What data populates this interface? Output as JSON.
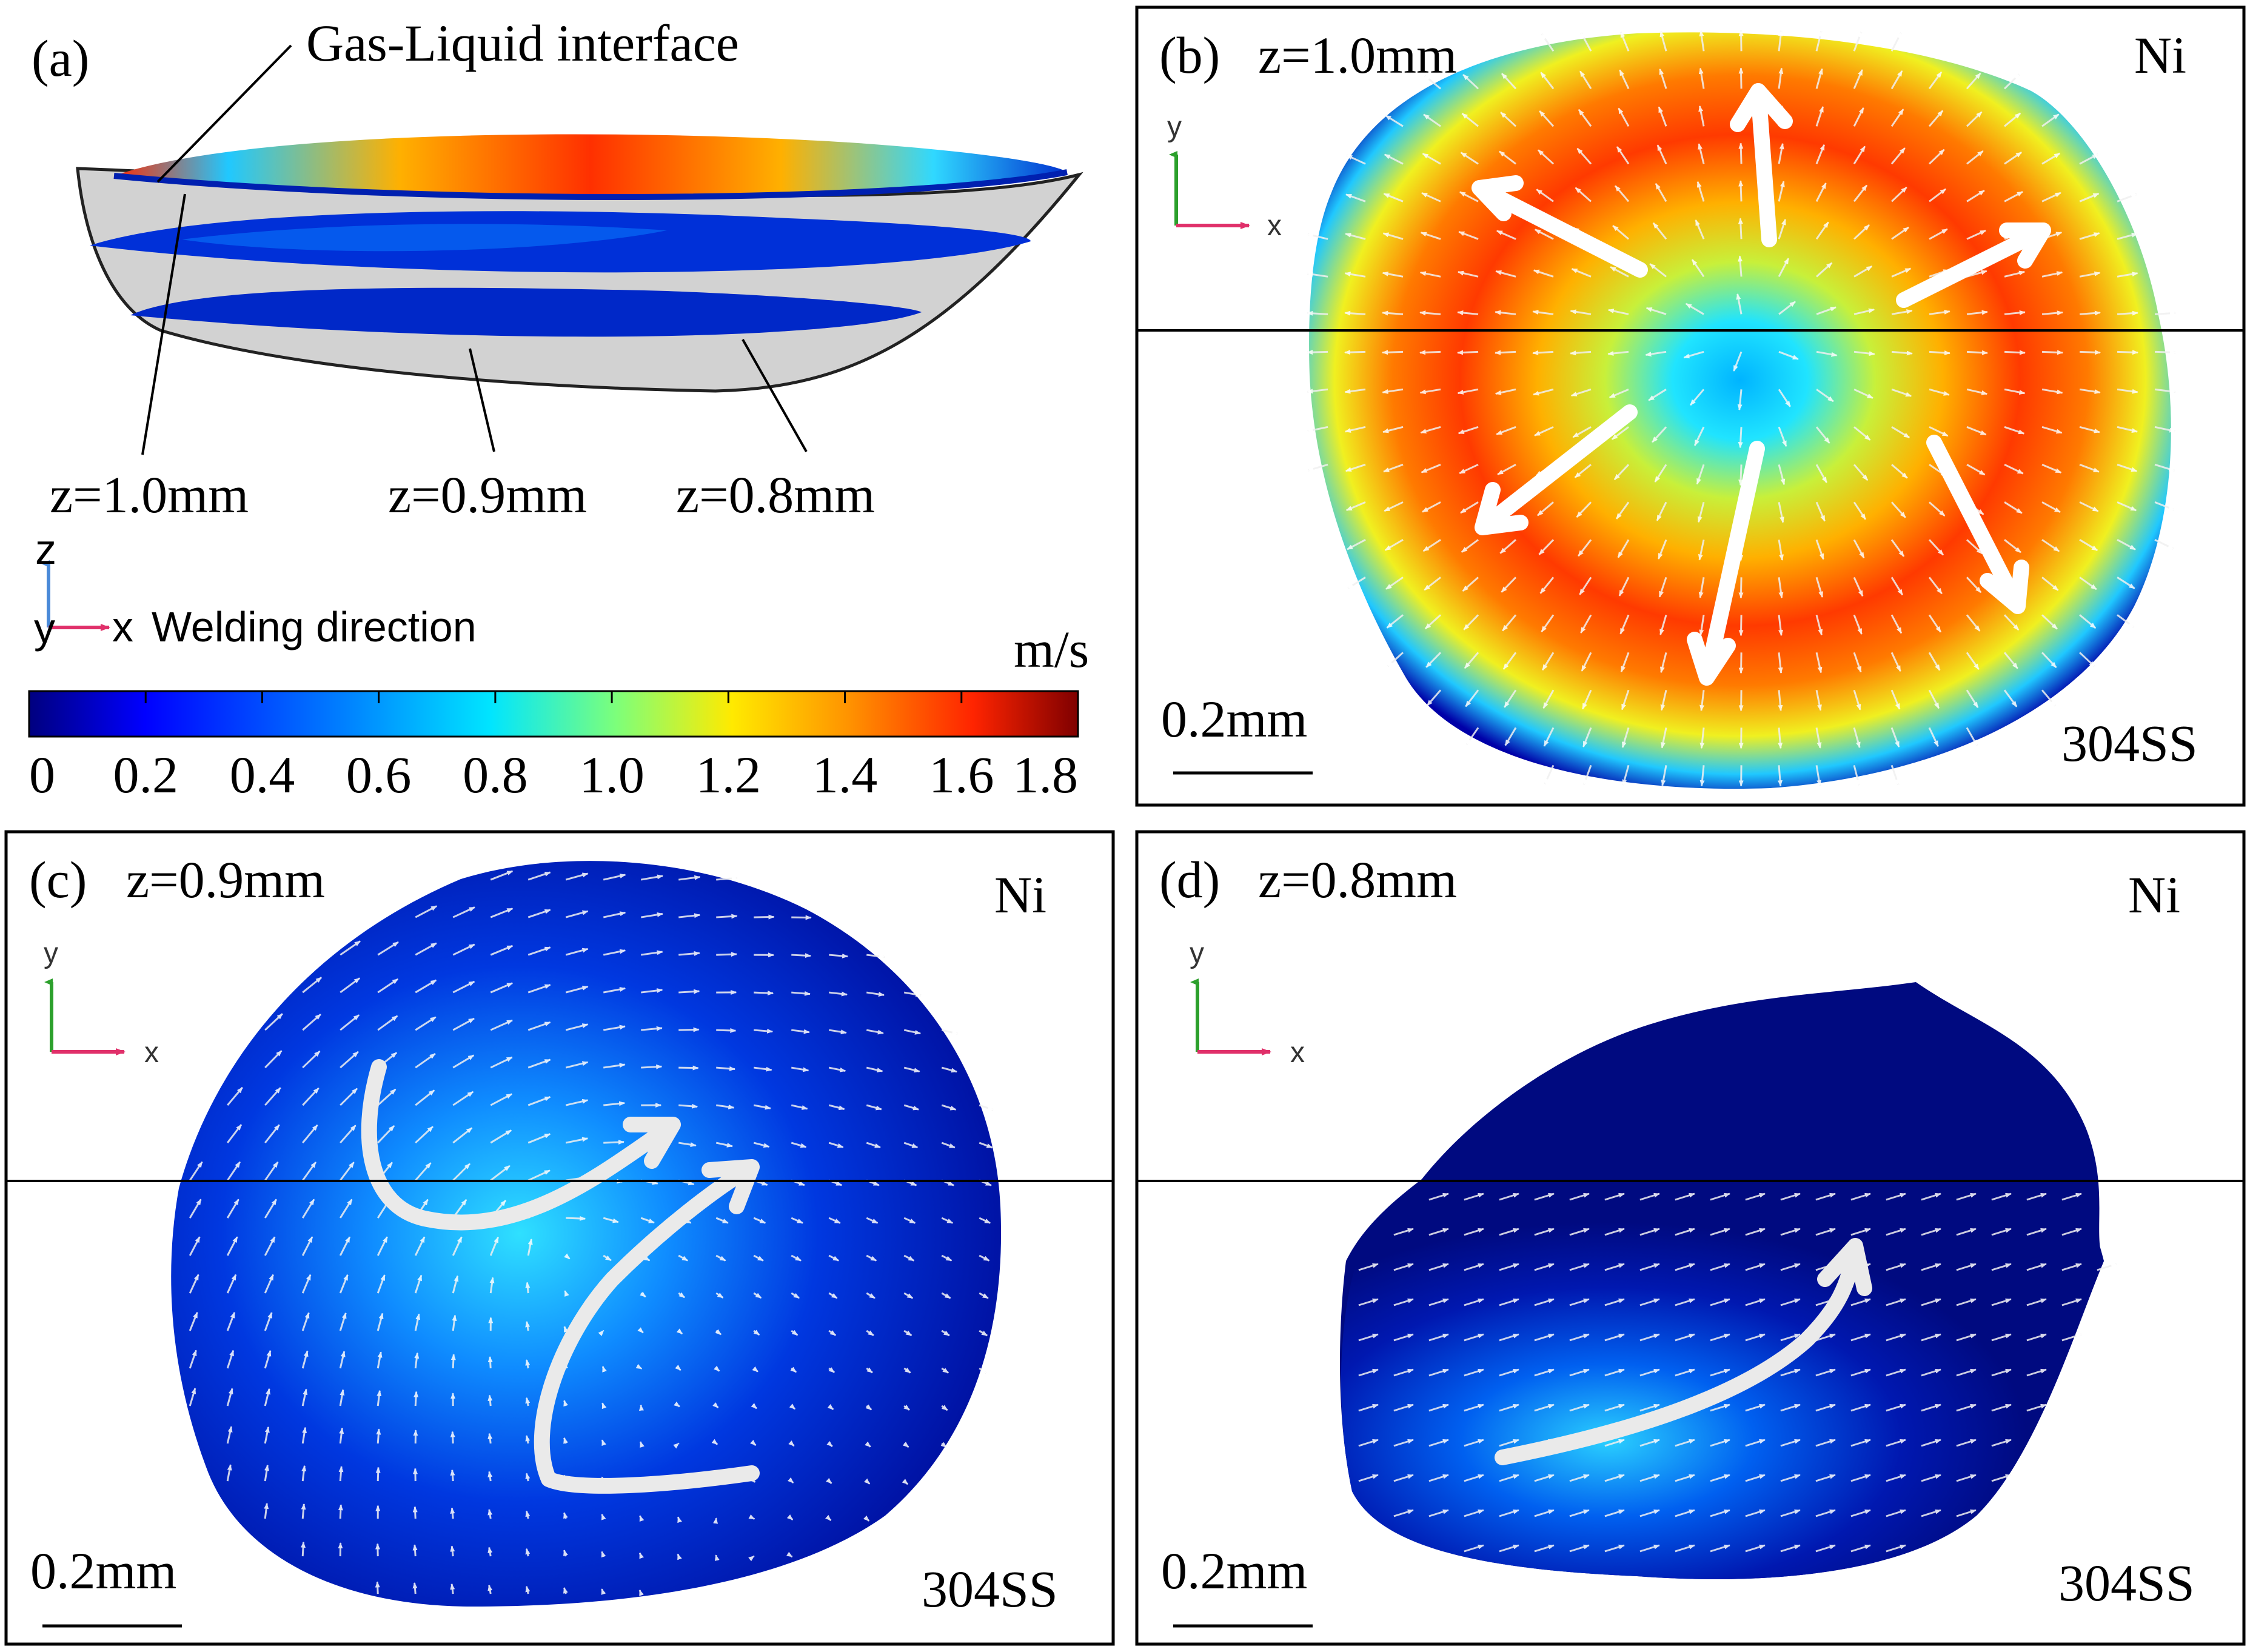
{
  "panel_a": {
    "label": "(a)",
    "callout_interface": "Gas-Liquid interface",
    "slice_labels": [
      "z=1.0mm",
      "z=0.9mm",
      "z=0.8mm"
    ],
    "axis_z": "z",
    "axis_y": "y",
    "axis_x": "x",
    "welding_direction": "Welding direction"
  },
  "colorbar": {
    "unit": "m/s",
    "ticks": [
      "0",
      "0.2",
      "0.4",
      "0.6",
      "0.8",
      "1.0",
      "1.2",
      "1.4",
      "1.6",
      "1.8"
    ],
    "colors": [
      "#00007f",
      "#0000ff",
      "#0080ff",
      "#00e5ff",
      "#7dff7a",
      "#ffea00",
      "#ff9400",
      "#ff2400",
      "#7f0000"
    ]
  },
  "panels": [
    {
      "label": "(b)",
      "z": "z=1.0mm",
      "top_material": "Ni",
      "bottom_material": "304SS",
      "scale_bar": "0.2mm",
      "axis_y": "y",
      "axis_x": "x"
    },
    {
      "label": "(c)",
      "z": "z=0.9mm",
      "top_material": "Ni",
      "bottom_material": "304SS",
      "scale_bar": "0.2mm",
      "axis_y": "y",
      "axis_x": "x"
    },
    {
      "label": "(d)",
      "z": "z=0.8mm",
      "top_material": "Ni",
      "bottom_material": "304SS",
      "scale_bar": "0.2mm",
      "axis_y": "y",
      "axis_x": "x"
    }
  ]
}
